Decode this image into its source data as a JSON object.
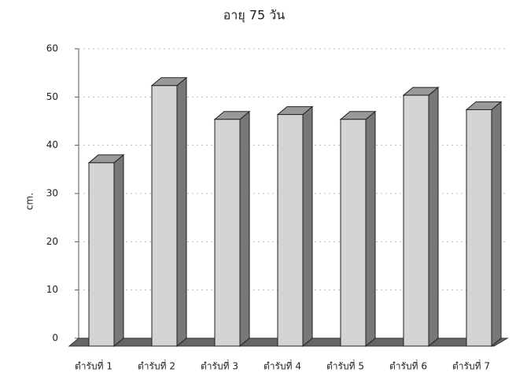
{
  "chart_data": {
    "type": "bar3d",
    "title": "อายุ 75 วัน",
    "y_label": "cm.",
    "categories": [
      "ตำรับที่ 1",
      "ตำรับที่ 2",
      "ตำรับที่ 3",
      "ตำรับที่ 4",
      "ตำรับที่ 5",
      "ตำรับที่ 6",
      "ตำรับที่ 7"
    ],
    "values": [
      38,
      54,
      47,
      48,
      47,
      52,
      49
    ],
    "color": "#d4d4d4",
    "ylim": [
      0,
      60
    ],
    "yticks": [
      0,
      10,
      20,
      30,
      40,
      50,
      60
    ],
    "grid": true
  }
}
